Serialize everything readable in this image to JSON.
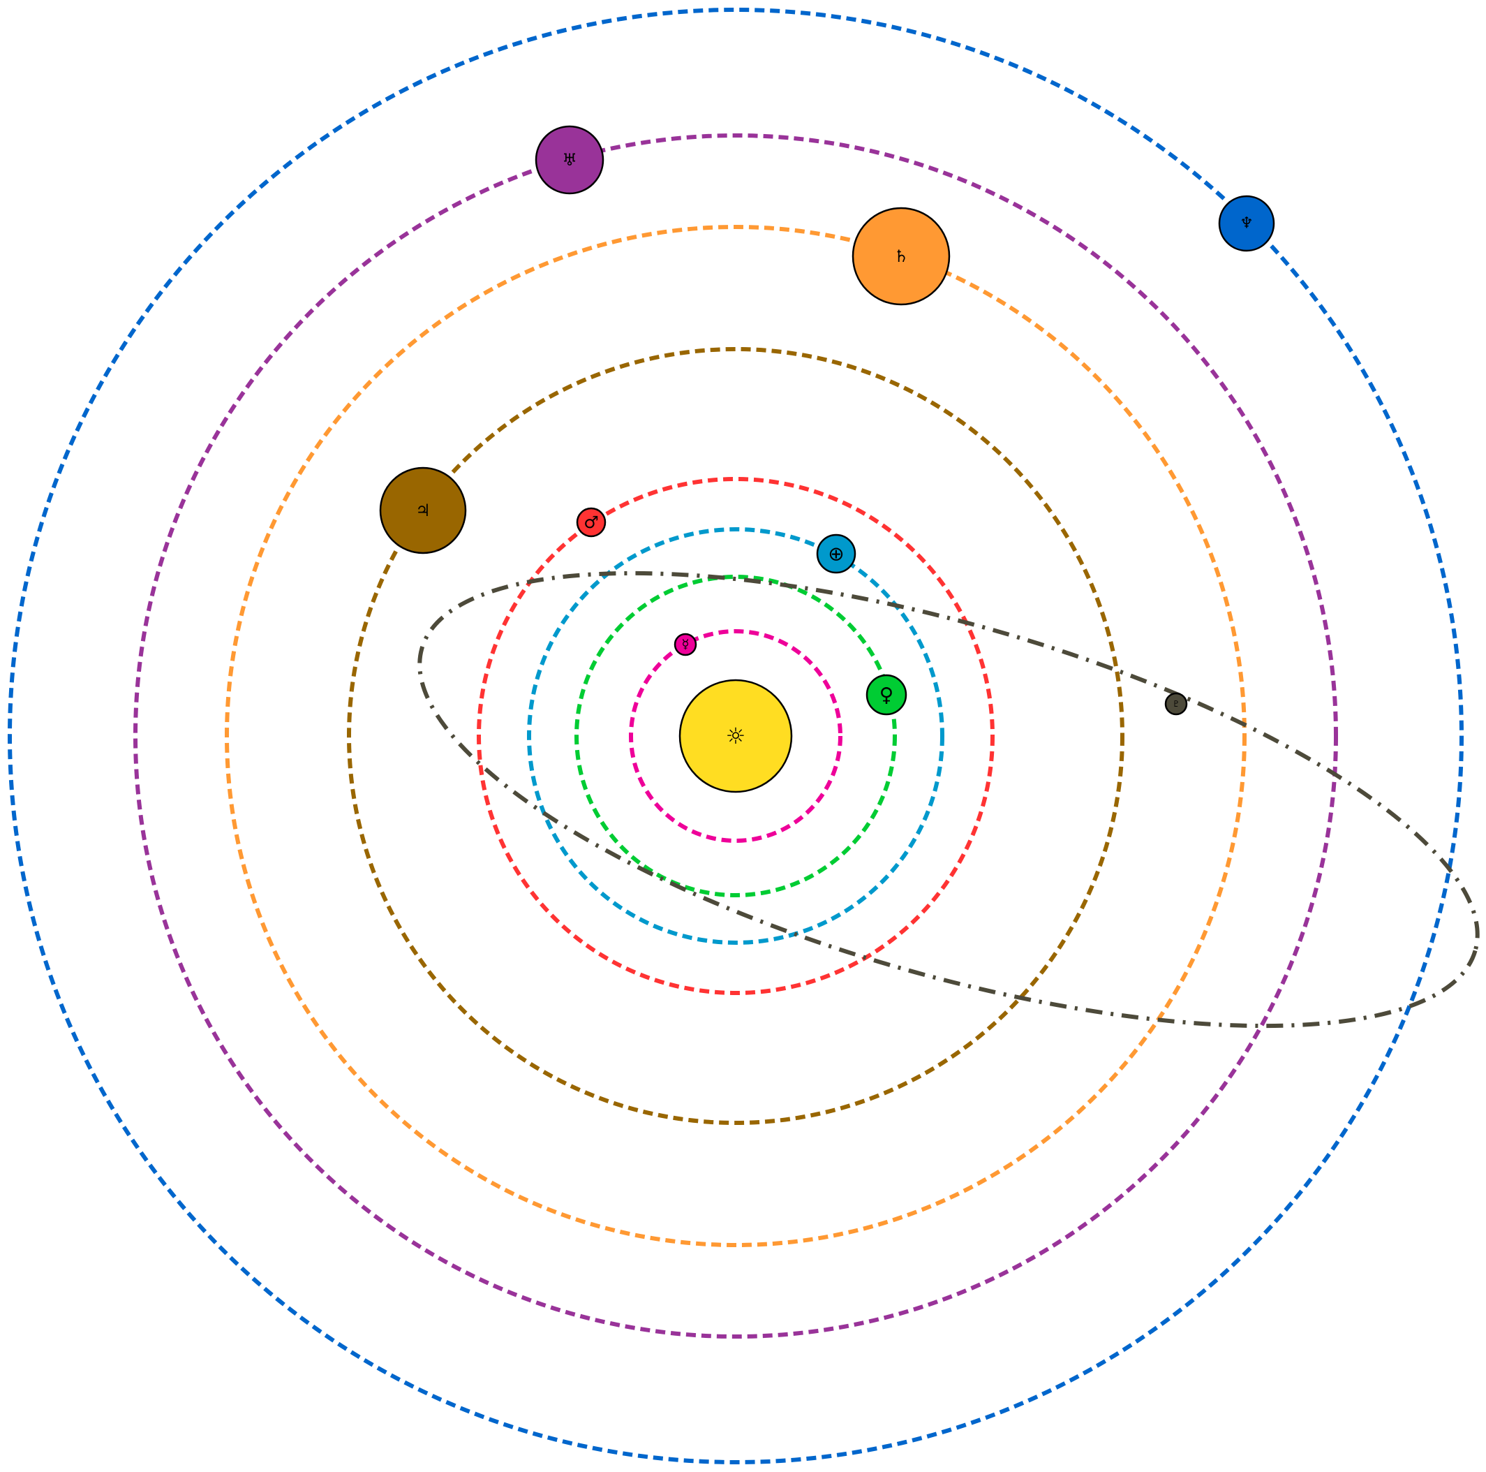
{
  "sun": {
    "name": "Sun",
    "symbol": "☼",
    "color": "#FFDD22"
  },
  "bodies": [
    {
      "name": "Mercury",
      "symbol": "☿",
      "color": "#EE0099"
    },
    {
      "name": "Venus",
      "symbol": "♀",
      "color": "#00CC33"
    },
    {
      "name": "Earth",
      "symbol": "⊕",
      "color": "#0099CC"
    },
    {
      "name": "Mars",
      "symbol": "♂",
      "color": "#FF3333"
    },
    {
      "name": "Jupiter",
      "symbol": "♃",
      "color": "#996600"
    },
    {
      "name": "Saturn",
      "symbol": "♄",
      "color": "#FF9933"
    },
    {
      "name": "Uranus",
      "symbol": "♅",
      "color": "#993399"
    },
    {
      "name": "Neptune",
      "symbol": "♆",
      "color": "#0066CC"
    },
    {
      "name": "Pluto",
      "symbol": "♇",
      "color": "#4D4A3A"
    }
  ]
}
